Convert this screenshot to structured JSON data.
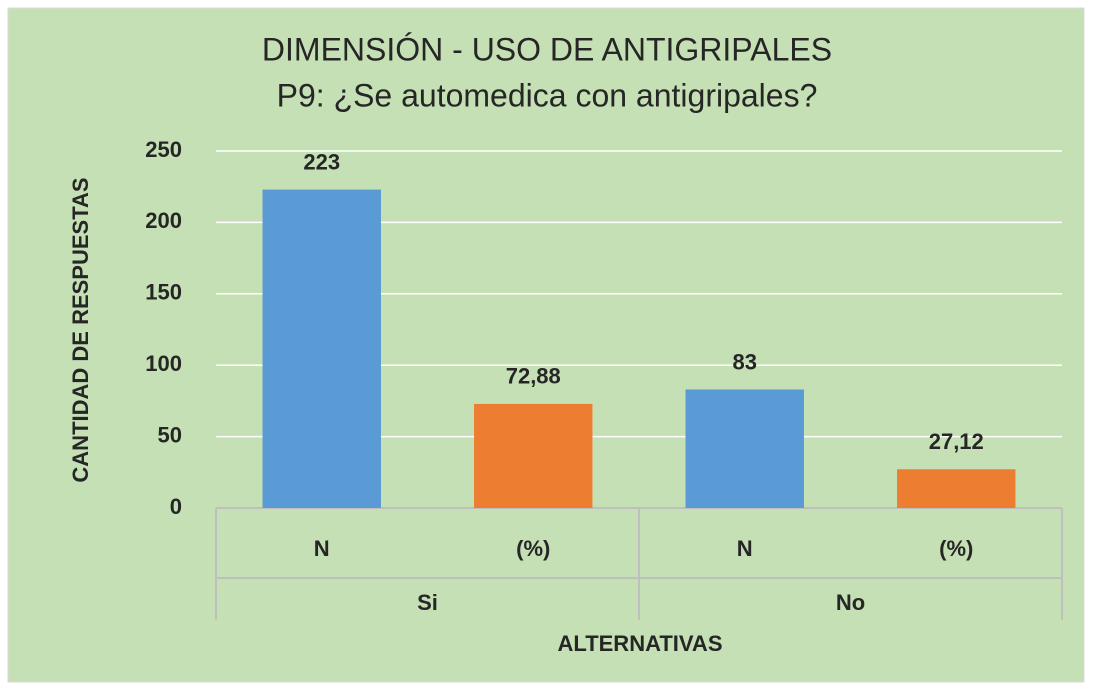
{
  "chart_data": {
    "type": "bar",
    "title": "DIMENSIÓN - USO DE ANTIGRIPALES",
    "subtitle": "P9: ¿Se automedica con antigripales?",
    "y_axis_label": "CANTIDAD DE RESPUESTAS",
    "x_axis_label": "ALTERNATIVAS",
    "categories": [
      "N",
      "(%)",
      "N",
      "(%)"
    ],
    "groups": [
      "Si",
      "No"
    ],
    "values": [
      223,
      72.88,
      83,
      27.12
    ],
    "value_labels": [
      "223",
      "72,88",
      "83",
      "27,12"
    ],
    "colors": [
      "#5b9bd5",
      "#ed7d31",
      "#5b9bd5",
      "#ed7d31"
    ],
    "ylim": [
      0,
      250
    ],
    "yticks": [
      0,
      50,
      100,
      150,
      200,
      250
    ],
    "grid": true
  }
}
